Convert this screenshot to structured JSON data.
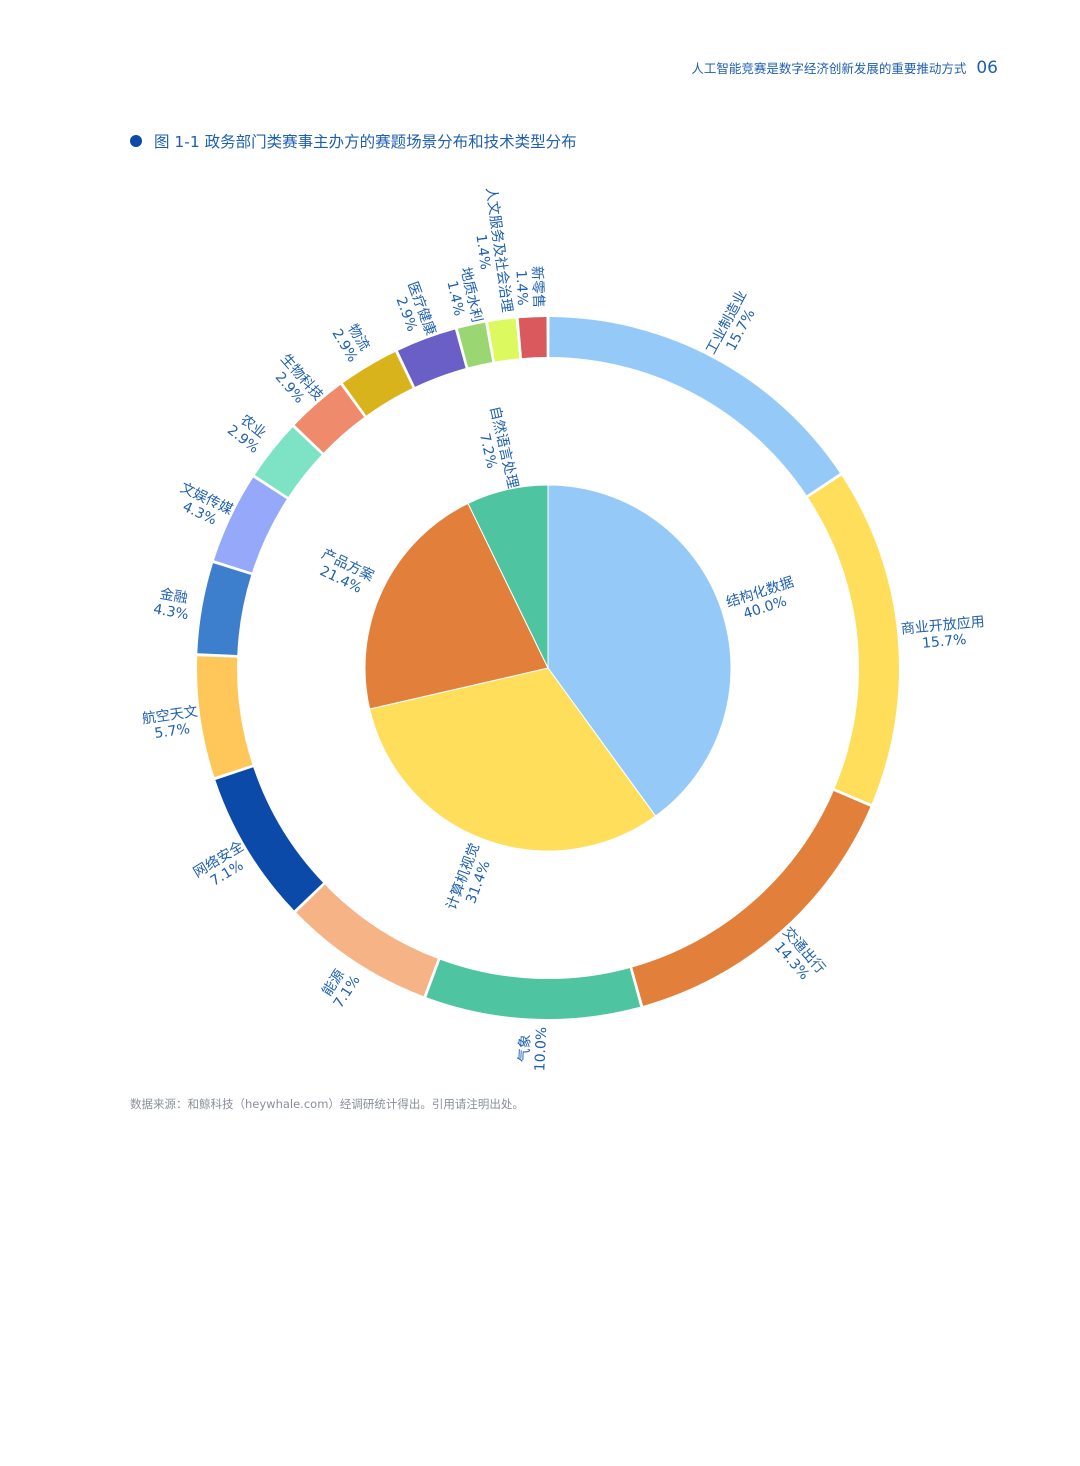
{
  "header": {
    "title": "人工智能竞赛是数字经济创新发展的重要推动方式",
    "page_number": "06"
  },
  "figure_title": "图 1-1 政务部门类赛事主办方的赛题场景分布和技术类型分布",
  "source": "数据来源：和鲸科技（heywhale.com）经调研统计得出。引用请注明出处。",
  "colors": {
    "label": "#1f5fb0",
    "bullet": "#0b4aa8"
  },
  "chart_data": [
    {
      "type": "pie",
      "name": "inner",
      "slices": [
        {
          "label": "结构化数据",
          "value": 40.0,
          "display": "40.0%",
          "color": "#95caf8"
        },
        {
          "label": "计算机视觉",
          "value": 31.4,
          "display": "31.4%",
          "color": "#ffde5c"
        },
        {
          "label": "产品方案",
          "value": 21.4,
          "display": "21.4%",
          "color": "#e27f3a"
        },
        {
          "label": "自然语言处理",
          "value": 7.2,
          "display": "7.2%",
          "color": "#4fc4a1"
        }
      ]
    },
    {
      "type": "pie",
      "name": "outer-ring",
      "slices": [
        {
          "label": "工业制造业",
          "value": 15.7,
          "display": "15.7%",
          "color": "#95caf8"
        },
        {
          "label": "商业开放应用",
          "value": 15.7,
          "display": "15.7%",
          "color": "#ffde5c"
        },
        {
          "label": "交通出行",
          "value": 14.3,
          "display": "14.3%",
          "color": "#e27f3a"
        },
        {
          "label": "气象",
          "value": 10.0,
          "display": "10.0%",
          "color": "#4fc4a1"
        },
        {
          "label": "能源",
          "value": 7.1,
          "display": "7.1%",
          "color": "#f5b386"
        },
        {
          "label": "网络安全",
          "value": 7.1,
          "display": "7.1%",
          "color": "#0b4aa8"
        },
        {
          "label": "航空天文",
          "value": 5.7,
          "display": "5.7%",
          "color": "#ffc75a"
        },
        {
          "label": "金融",
          "value": 4.3,
          "display": "4.3%",
          "color": "#3d7fcc"
        },
        {
          "label": "文娱传媒",
          "value": 4.3,
          "display": "4.3%",
          "color": "#96a8f9"
        },
        {
          "label": "农业",
          "value": 2.9,
          "display": "2.9%",
          "color": "#7de3c4"
        },
        {
          "label": "生物科技",
          "value": 2.9,
          "display": "2.9%",
          "color": "#ef8a6c"
        },
        {
          "label": "物流",
          "value": 2.9,
          "display": "2.9%",
          "color": "#d8b31c"
        },
        {
          "label": "医疗健康",
          "value": 2.9,
          "display": "2.9%",
          "color": "#6a5ec7"
        },
        {
          "label": "地质水利",
          "value": 1.4,
          "display": "1.4%",
          "color": "#9ad672"
        },
        {
          "label": "人文服务及社会治理",
          "value": 1.4,
          "display": "1.4%",
          "color": "#dcfa5f"
        },
        {
          "label": "新零售",
          "value": 1.4,
          "display": "1.4%",
          "color": "#d9595c"
        }
      ]
    }
  ]
}
